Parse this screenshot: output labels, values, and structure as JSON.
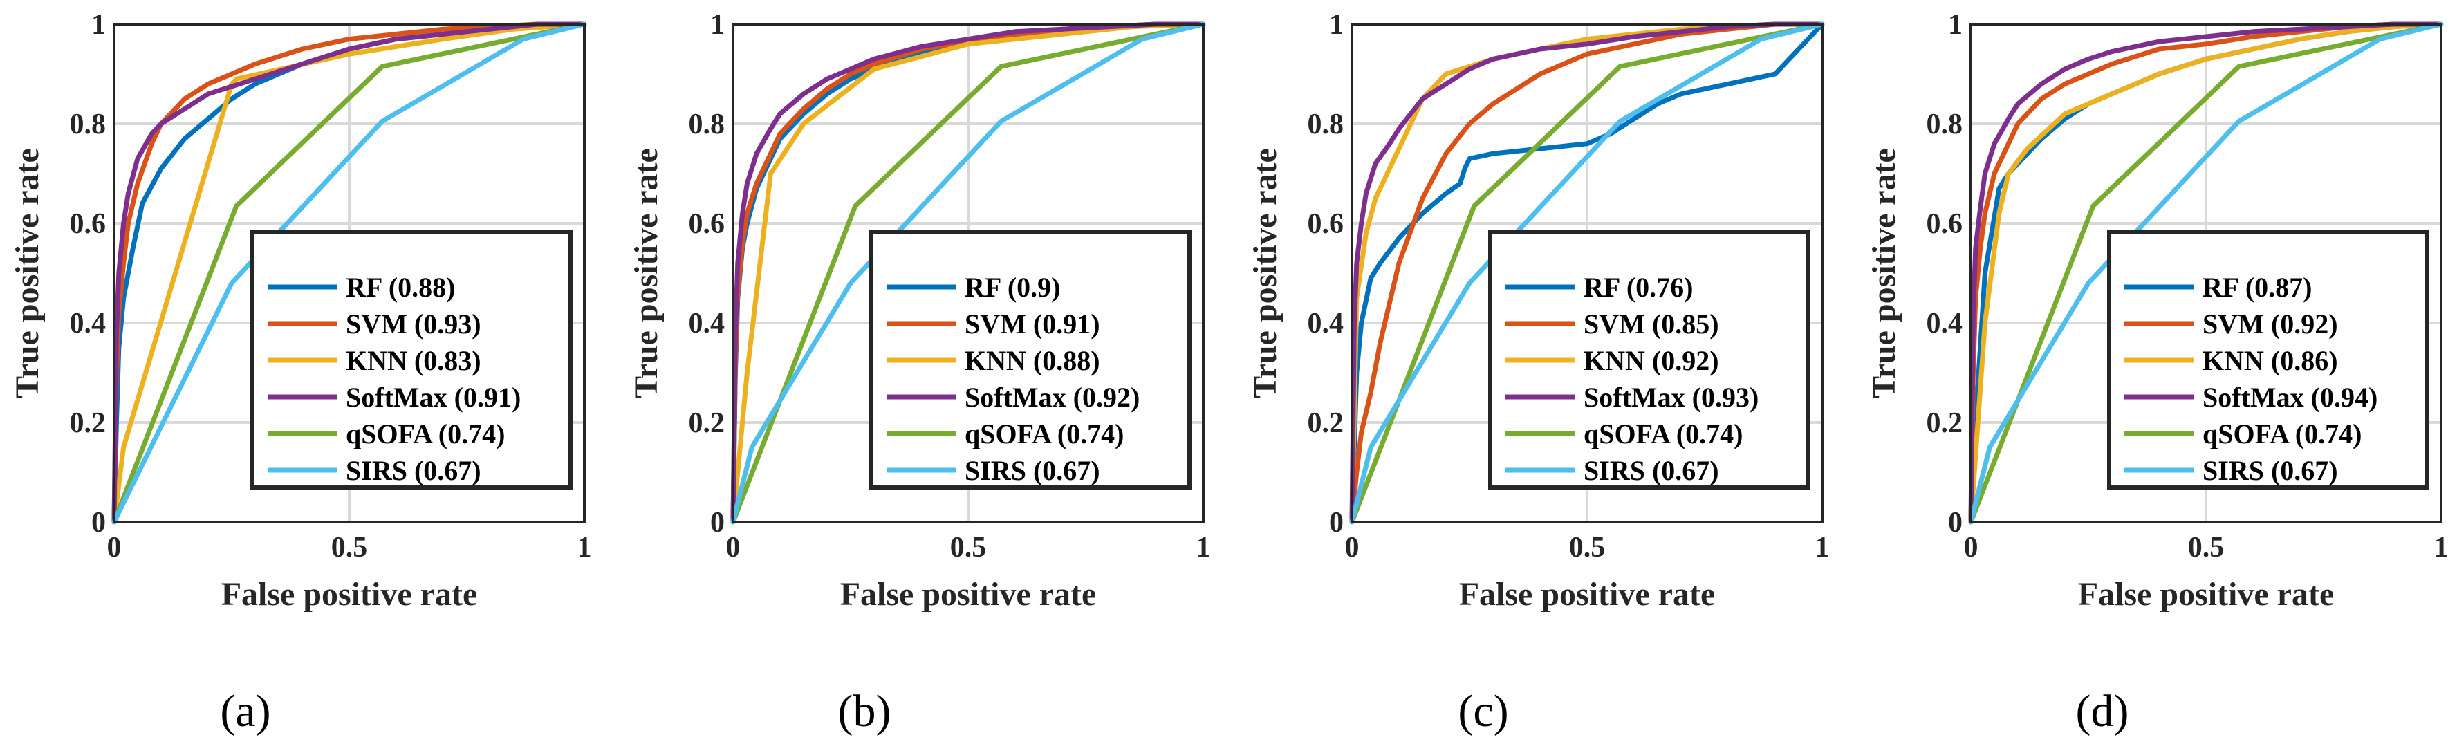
{
  "axis_labels": {
    "x": "False positive rate",
    "y": "True positive rate",
    "xticks": [
      "0",
      "0.5",
      "1"
    ],
    "yticks": [
      "0",
      "0.2",
      "0.4",
      "0.6",
      "0.8",
      "1"
    ]
  },
  "colors": {
    "RF": "#0072BD",
    "SVM": "#D95319",
    "KNN": "#EDB120",
    "SoftMax": "#7E2F8E",
    "qSOFA": "#77AC30",
    "SIRS": "#4DBEEE",
    "grid": "#d9d9d9",
    "axis": "#262626"
  },
  "chart_data": [
    {
      "type": "line",
      "panel_label": "(a)",
      "xlabel": "False positive rate",
      "ylabel": "True positive rate",
      "xlim": [
        0,
        1
      ],
      "ylim": [
        0,
        1
      ],
      "grid": true,
      "legend_position": "lower-right",
      "series": [
        {
          "name": "RF",
          "legend": "RF (0.88)",
          "x": [
            0,
            0.005,
            0.01,
            0.02,
            0.04,
            0.06,
            0.1,
            0.15,
            0.2,
            0.25,
            0.3,
            0.4,
            0.5,
            0.6,
            0.7,
            0.8,
            0.9,
            1
          ],
          "y": [
            0,
            0.2,
            0.35,
            0.45,
            0.55,
            0.64,
            0.71,
            0.77,
            0.81,
            0.85,
            0.88,
            0.92,
            0.95,
            0.97,
            0.98,
            0.99,
            1,
            1
          ]
        },
        {
          "name": "SVM",
          "legend": "SVM (0.93)",
          "x": [
            0,
            0.005,
            0.01,
            0.02,
            0.03,
            0.05,
            0.08,
            0.1,
            0.15,
            0.2,
            0.25,
            0.3,
            0.4,
            0.5,
            0.6,
            0.7,
            0.8,
            0.9,
            1
          ],
          "y": [
            0,
            0.3,
            0.42,
            0.52,
            0.6,
            0.68,
            0.76,
            0.8,
            0.85,
            0.88,
            0.9,
            0.92,
            0.95,
            0.97,
            0.98,
            0.99,
            0.995,
            1,
            1
          ]
        },
        {
          "name": "KNN",
          "legend": "KNN (0.83)",
          "x": [
            0,
            0.02,
            0.25,
            0.26,
            0.5,
            0.7,
            0.85,
            1
          ],
          "y": [
            0,
            0.15,
            0.88,
            0.89,
            0.94,
            0.97,
            0.99,
            1
          ]
        },
        {
          "name": "SoftMax",
          "legend": "SoftMax (0.91)",
          "x": [
            0,
            0.005,
            0.01,
            0.02,
            0.03,
            0.05,
            0.08,
            0.1,
            0.15,
            0.2,
            0.3,
            0.4,
            0.5,
            0.6,
            0.7,
            0.8,
            0.9,
            1
          ],
          "y": [
            0,
            0.38,
            0.5,
            0.6,
            0.66,
            0.73,
            0.78,
            0.8,
            0.83,
            0.86,
            0.89,
            0.92,
            0.95,
            0.97,
            0.98,
            0.99,
            1,
            1
          ]
        },
        {
          "name": "qSOFA",
          "legend": "qSOFA (0.74)",
          "x": [
            0,
            0.26,
            0.57,
            1
          ],
          "y": [
            0,
            0.635,
            0.915,
            1
          ]
        },
        {
          "name": "SIRS",
          "legend": "SIRS (0.67)",
          "x": [
            0,
            0.25,
            0.57,
            0.87,
            1
          ],
          "y": [
            0,
            0.48,
            0.805,
            0.97,
            1
          ]
        }
      ]
    },
    {
      "type": "line",
      "panel_label": "(b)",
      "xlabel": "False positive rate",
      "ylabel": "True positive rate",
      "xlim": [
        0,
        1
      ],
      "ylim": [
        0,
        1
      ],
      "grid": true,
      "legend_position": "lower-right",
      "series": [
        {
          "name": "RF",
          "legend": "RF (0.9)",
          "x": [
            0,
            0.005,
            0.01,
            0.02,
            0.03,
            0.05,
            0.08,
            0.1,
            0.15,
            0.2,
            0.25,
            0.3,
            0.4,
            0.5,
            0.6,
            0.7,
            0.8,
            0.9,
            1
          ],
          "y": [
            0,
            0.3,
            0.45,
            0.55,
            0.6,
            0.67,
            0.73,
            0.77,
            0.82,
            0.86,
            0.89,
            0.91,
            0.94,
            0.96,
            0.975,
            0.985,
            0.995,
            1,
            1
          ]
        },
        {
          "name": "SVM",
          "legend": "SVM (0.91)",
          "x": [
            0,
            0.005,
            0.01,
            0.02,
            0.03,
            0.05,
            0.08,
            0.1,
            0.15,
            0.2,
            0.25,
            0.3,
            0.4,
            0.5,
            0.6,
            0.7,
            0.8,
            0.9,
            1
          ],
          "y": [
            0,
            0.32,
            0.46,
            0.56,
            0.62,
            0.68,
            0.74,
            0.78,
            0.83,
            0.87,
            0.9,
            0.92,
            0.95,
            0.965,
            0.98,
            0.99,
            0.995,
            1,
            1
          ]
        },
        {
          "name": "KNN",
          "legend": "KNN (0.88)",
          "x": [
            0,
            0.03,
            0.08,
            0.15,
            0.3,
            0.5,
            0.7,
            0.85,
            1
          ],
          "y": [
            0,
            0.3,
            0.7,
            0.8,
            0.91,
            0.96,
            0.98,
            0.995,
            1
          ]
        },
        {
          "name": "SoftMax",
          "legend": "SoftMax (0.92)",
          "x": [
            0,
            0.005,
            0.01,
            0.02,
            0.03,
            0.05,
            0.08,
            0.1,
            0.15,
            0.2,
            0.25,
            0.3,
            0.4,
            0.5,
            0.6,
            0.7,
            0.8,
            0.9,
            1
          ],
          "y": [
            0,
            0.38,
            0.52,
            0.62,
            0.68,
            0.74,
            0.79,
            0.82,
            0.86,
            0.89,
            0.91,
            0.93,
            0.955,
            0.97,
            0.985,
            0.99,
            0.995,
            1,
            1
          ]
        },
        {
          "name": "qSOFA",
          "legend": "qSOFA (0.74)",
          "x": [
            0,
            0.26,
            0.57,
            1
          ],
          "y": [
            0,
            0.635,
            0.915,
            1
          ]
        },
        {
          "name": "SIRS",
          "legend": "SIRS (0.67)",
          "x": [
            0,
            0.04,
            0.25,
            0.57,
            0.87,
            1
          ],
          "y": [
            0,
            0.15,
            0.48,
            0.805,
            0.97,
            1
          ]
        }
      ]
    },
    {
      "type": "line",
      "panel_label": "(c)",
      "xlabel": "False positive rate",
      "ylabel": "True positive rate",
      "xlim": [
        0,
        1
      ],
      "ylim": [
        0,
        1
      ],
      "grid": true,
      "legend_position": "lower-right",
      "series": [
        {
          "name": "RF",
          "legend": "RF (0.76)",
          "x": [
            0,
            0.01,
            0.02,
            0.04,
            0.06,
            0.1,
            0.15,
            0.2,
            0.23,
            0.24,
            0.25,
            0.3,
            0.4,
            0.5,
            0.55,
            0.6,
            0.65,
            0.7,
            0.8,
            0.85,
            0.9,
            0.95,
            1
          ],
          "y": [
            0,
            0.3,
            0.4,
            0.49,
            0.52,
            0.57,
            0.62,
            0.66,
            0.68,
            0.71,
            0.73,
            0.74,
            0.75,
            0.76,
            0.78,
            0.81,
            0.84,
            0.86,
            0.88,
            0.89,
            0.9,
            0.95,
            1
          ]
        },
        {
          "name": "SVM",
          "legend": "SVM (0.85)",
          "x": [
            0,
            0.01,
            0.02,
            0.04,
            0.06,
            0.1,
            0.15,
            0.2,
            0.25,
            0.3,
            0.4,
            0.5,
            0.6,
            0.7,
            0.8,
            0.9,
            1
          ],
          "y": [
            0,
            0.1,
            0.18,
            0.26,
            0.36,
            0.52,
            0.65,
            0.74,
            0.8,
            0.84,
            0.9,
            0.94,
            0.96,
            0.98,
            0.99,
            1,
            1
          ]
        },
        {
          "name": "KNN",
          "legend": "KNN (0.92)",
          "x": [
            0,
            0.01,
            0.03,
            0.05,
            0.1,
            0.15,
            0.2,
            0.3,
            0.4,
            0.5,
            0.6,
            0.7,
            0.8,
            0.9,
            1
          ],
          "y": [
            0,
            0.45,
            0.58,
            0.65,
            0.75,
            0.85,
            0.9,
            0.93,
            0.95,
            0.97,
            0.98,
            0.99,
            0.995,
            1,
            1
          ]
        },
        {
          "name": "SoftMax",
          "legend": "SoftMax (0.93)",
          "x": [
            0,
            0.005,
            0.01,
            0.02,
            0.03,
            0.05,
            0.08,
            0.1,
            0.15,
            0.2,
            0.25,
            0.3,
            0.4,
            0.5,
            0.6,
            0.7,
            0.8,
            0.9,
            1
          ],
          "y": [
            0,
            0.4,
            0.52,
            0.6,
            0.66,
            0.72,
            0.76,
            0.79,
            0.85,
            0.88,
            0.91,
            0.93,
            0.95,
            0.96,
            0.975,
            0.985,
            0.995,
            1,
            1
          ]
        },
        {
          "name": "qSOFA",
          "legend": "qSOFA (0.74)",
          "x": [
            0,
            0.26,
            0.57,
            1
          ],
          "y": [
            0,
            0.635,
            0.915,
            1
          ]
        },
        {
          "name": "SIRS",
          "legend": "SIRS (0.67)",
          "x": [
            0,
            0.04,
            0.25,
            0.57,
            0.87,
            1
          ],
          "y": [
            0,
            0.15,
            0.48,
            0.805,
            0.97,
            1
          ]
        }
      ]
    },
    {
      "type": "line",
      "panel_label": "(d)",
      "xlabel": "False positive rate",
      "ylabel": "True positive rate",
      "xlim": [
        0,
        1
      ],
      "ylim": [
        0,
        1
      ],
      "grid": true,
      "legend_position": "lower-right",
      "series": [
        {
          "name": "RF",
          "legend": "RF (0.87)",
          "x": [
            0,
            0.01,
            0.03,
            0.06,
            0.08,
            0.1,
            0.15,
            0.2,
            0.25,
            0.3,
            0.4,
            0.5,
            0.6,
            0.7,
            0.8,
            0.9,
            1
          ],
          "y": [
            0,
            0.2,
            0.5,
            0.67,
            0.7,
            0.72,
            0.77,
            0.81,
            0.84,
            0.86,
            0.9,
            0.93,
            0.95,
            0.97,
            0.985,
            0.995,
            1
          ]
        },
        {
          "name": "SVM",
          "legend": "SVM (0.92)",
          "x": [
            0,
            0.005,
            0.01,
            0.02,
            0.03,
            0.05,
            0.08,
            0.1,
            0.15,
            0.2,
            0.25,
            0.3,
            0.4,
            0.5,
            0.6,
            0.7,
            0.8,
            0.9,
            1
          ],
          "y": [
            0,
            0.3,
            0.45,
            0.55,
            0.62,
            0.7,
            0.76,
            0.8,
            0.85,
            0.88,
            0.9,
            0.92,
            0.95,
            0.96,
            0.975,
            0.985,
            0.995,
            1,
            1
          ]
        },
        {
          "name": "KNN",
          "legend": "KNN (0.86)",
          "x": [
            0,
            0.03,
            0.06,
            0.08,
            0.12,
            0.2,
            0.3,
            0.4,
            0.5,
            0.6,
            0.7,
            0.8,
            0.9,
            1
          ],
          "y": [
            0,
            0.4,
            0.62,
            0.7,
            0.75,
            0.82,
            0.86,
            0.9,
            0.93,
            0.95,
            0.97,
            0.985,
            0.995,
            1
          ]
        },
        {
          "name": "SoftMax",
          "legend": "SoftMax (0.94)",
          "x": [
            0,
            0.005,
            0.01,
            0.02,
            0.03,
            0.05,
            0.08,
            0.1,
            0.15,
            0.2,
            0.25,
            0.3,
            0.4,
            0.5,
            0.6,
            0.7,
            0.8,
            0.9,
            1
          ],
          "y": [
            0,
            0.42,
            0.55,
            0.63,
            0.7,
            0.76,
            0.81,
            0.84,
            0.88,
            0.91,
            0.93,
            0.945,
            0.965,
            0.975,
            0.985,
            0.99,
            0.995,
            1,
            1
          ]
        },
        {
          "name": "qSOFA",
          "legend": "qSOFA (0.74)",
          "x": [
            0,
            0.26,
            0.57,
            1
          ],
          "y": [
            0,
            0.635,
            0.915,
            1
          ]
        },
        {
          "name": "SIRS",
          "legend": "SIRS (0.67)",
          "x": [
            0,
            0.04,
            0.25,
            0.57,
            0.87,
            1
          ],
          "y": [
            0,
            0.15,
            0.48,
            0.805,
            0.97,
            1
          ]
        }
      ]
    }
  ]
}
